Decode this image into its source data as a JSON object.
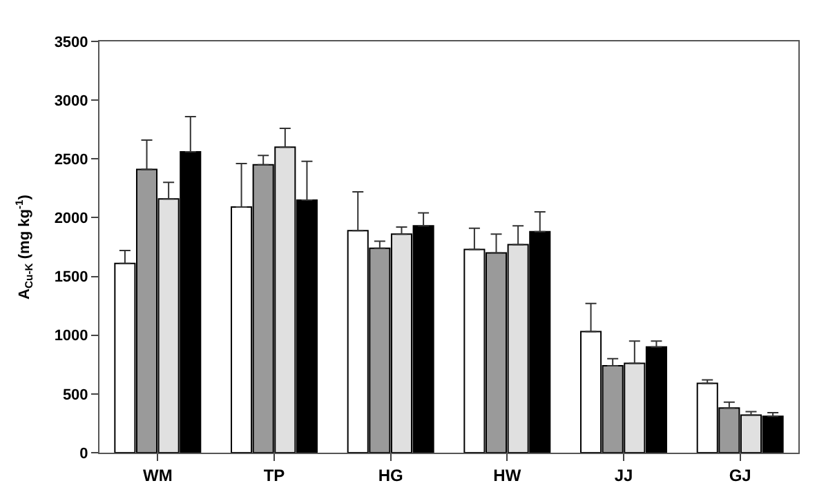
{
  "chart_data": {
    "type": "bar",
    "ylabel": "A$_{Cu-K}$ (mg kg$^{-1}$)",
    "categories": [
      "WM",
      "TP",
      "HG",
      "HW",
      "JJ",
      "GJ"
    ],
    "series": [
      {
        "color": "#ffffff",
        "values": [
          1610,
          2090,
          1890,
          1730,
          1030,
          590
        ],
        "errors": [
          [
            1610,
            1720
          ],
          [
            2090,
            2460
          ],
          [
            1890,
            2220
          ],
          [
            1730,
            1910
          ],
          [
            1030,
            1270
          ],
          [
            590,
            620
          ]
        ]
      },
      {
        "color": "#9a9a9a",
        "values": [
          2410,
          2450,
          1740,
          1700,
          740,
          380
        ],
        "errors": [
          [
            2410,
            2660
          ],
          [
            2450,
            2530
          ],
          [
            1740,
            1800
          ],
          [
            1700,
            1860
          ],
          [
            740,
            800
          ],
          [
            380,
            430
          ]
        ]
      },
      {
        "color": "#e0e0e0",
        "values": [
          2160,
          2600,
          1860,
          1770,
          760,
          320
        ],
        "errors": [
          [
            2160,
            2300
          ],
          [
            2600,
            2760
          ],
          [
            1860,
            1920
          ],
          [
            1770,
            1930
          ],
          [
            760,
            950
          ],
          [
            320,
            350
          ]
        ]
      },
      {
        "color": "#000000",
        "values": [
          2560,
          2150,
          1930,
          1880,
          900,
          310
        ],
        "errors": [
          [
            2560,
            2860
          ],
          [
            2150,
            2480
          ],
          [
            1930,
            2040
          ],
          [
            1880,
            2050
          ],
          [
            900,
            950
          ],
          [
            310,
            340
          ]
        ]
      }
    ],
    "ylim": [
      0,
      3500
    ],
    "yticks": [
      0,
      500,
      1000,
      1500,
      2000,
      2500,
      3000,
      3500
    ],
    "legend": false
  }
}
